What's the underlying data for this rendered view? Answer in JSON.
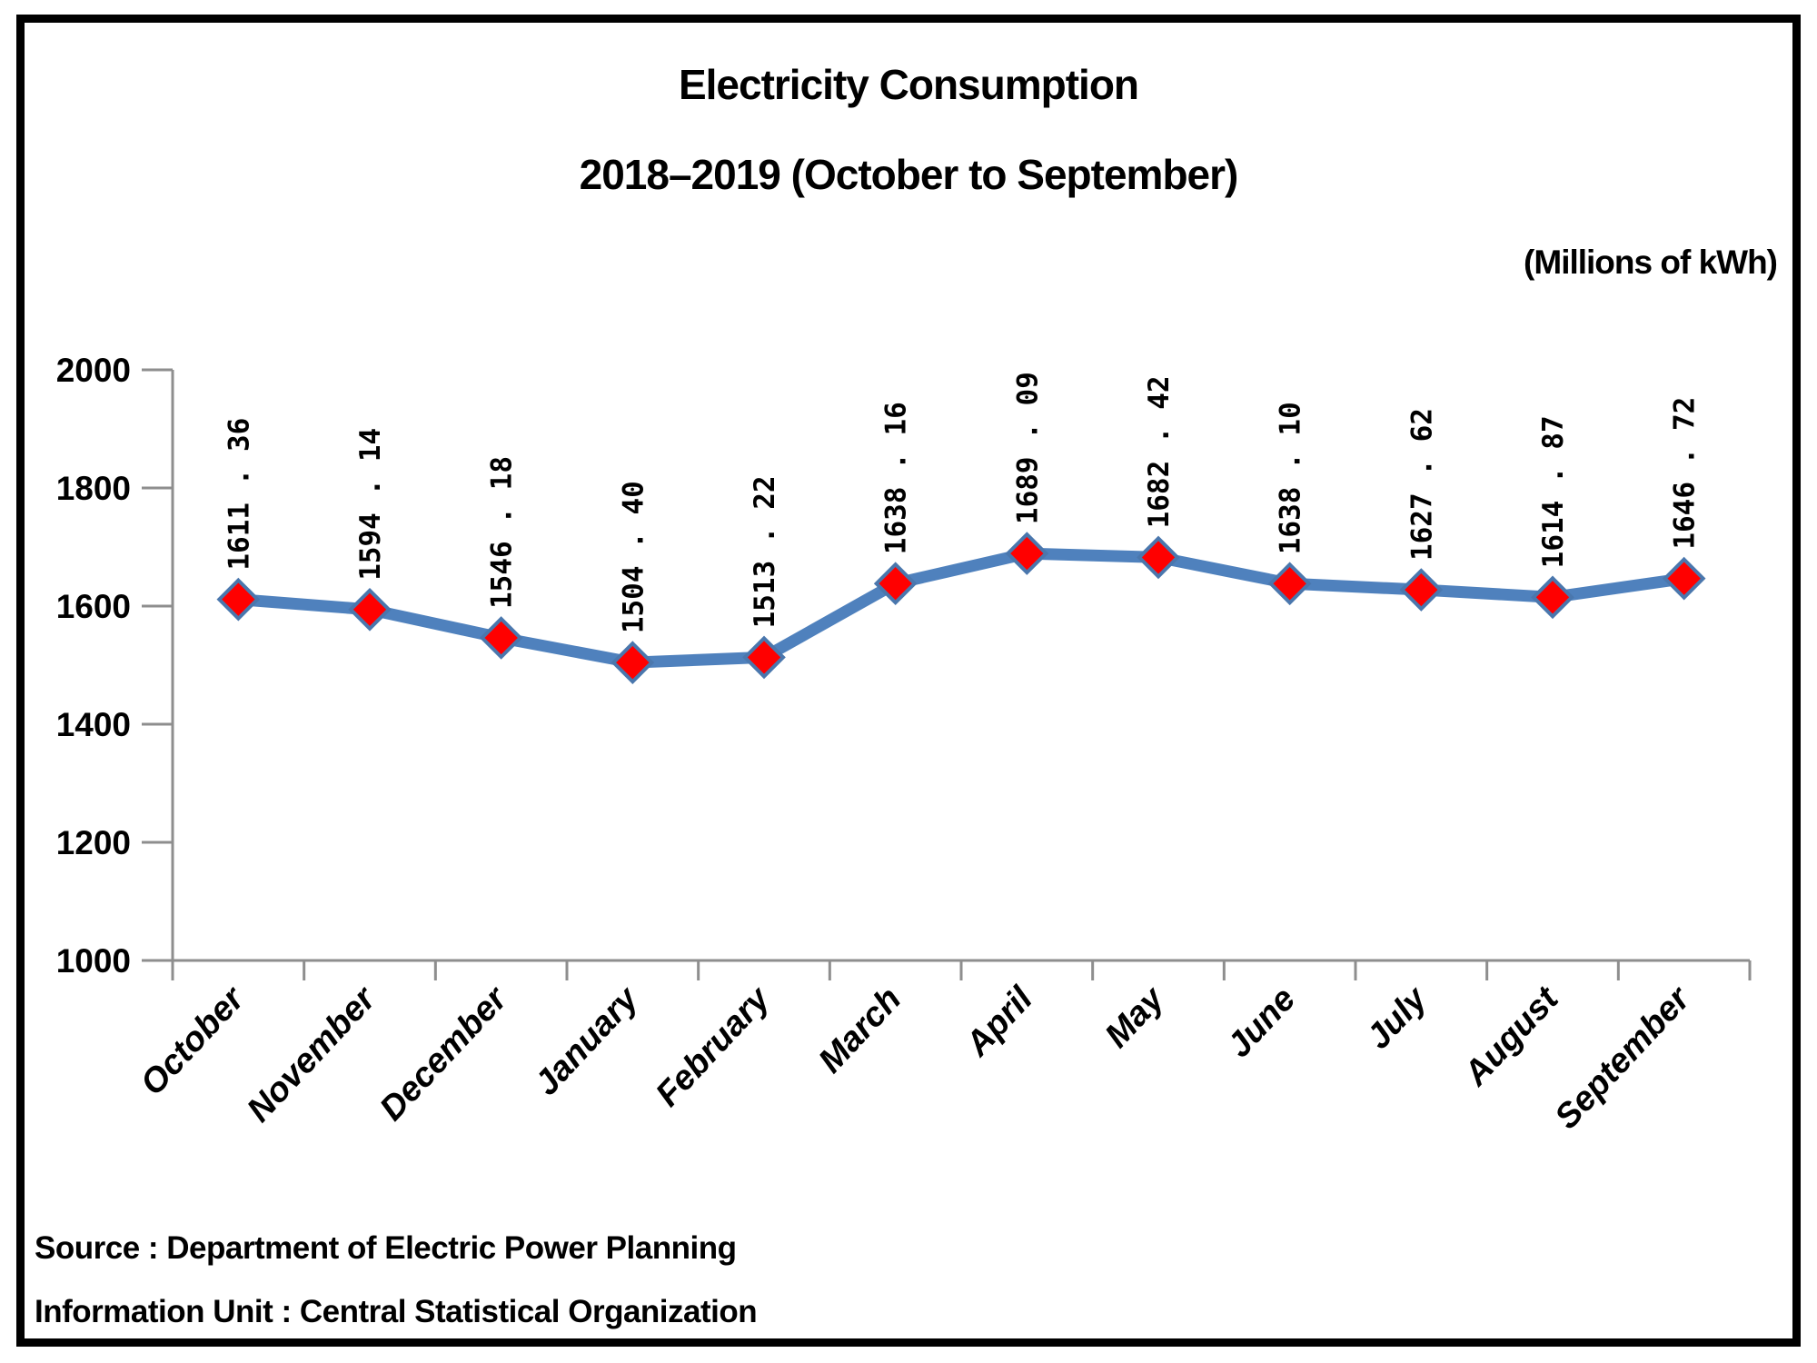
{
  "title": "Electricity Consumption",
  "subtitle": "2018–2019 (October to September)",
  "unit_label": "(Millions of kWh)",
  "footer": {
    "source": "Source : Department of Electric Power Planning",
    "information_unit": "Information Unit : Central Statistical Organization"
  },
  "chart_data": {
    "type": "line",
    "title": "Electricity Consumption",
    "subtitle": "2018–2019 (October to September)",
    "unit": "Millions of kWh",
    "categories": [
      "October",
      "November",
      "December",
      "January",
      "February",
      "March",
      "April",
      "May",
      "June",
      "July",
      "August",
      "September"
    ],
    "series": [
      {
        "name": "Electricity Consumption",
        "values": [
          1611.36,
          1594.14,
          1546.18,
          1504.4,
          1513.22,
          1638.16,
          1689.09,
          1682.42,
          1638.1,
          1627.62,
          1614.87,
          1646.72
        ]
      }
    ],
    "point_labels": [
      "1611 . 36",
      "1594 . 14",
      "1546 . 18",
      "1504 . 40",
      "1513 . 22",
      "1638 . 16",
      "1689 . 09",
      "1682 . 42",
      "1638 . 10",
      "1627 . 62",
      "1614 . 87",
      "1646 . 72"
    ],
    "ylim": [
      1000,
      2000
    ],
    "yticks": [
      1000,
      1200,
      1400,
      1600,
      1800,
      2000
    ],
    "grid": false,
    "legend": "none",
    "marker": "diamond",
    "colors": {
      "line": "#4f81bd",
      "marker_fill": "#ff0000",
      "marker_stroke": "#4a77ad",
      "axis": "#8e8e8e",
      "text": "#000000"
    }
  }
}
